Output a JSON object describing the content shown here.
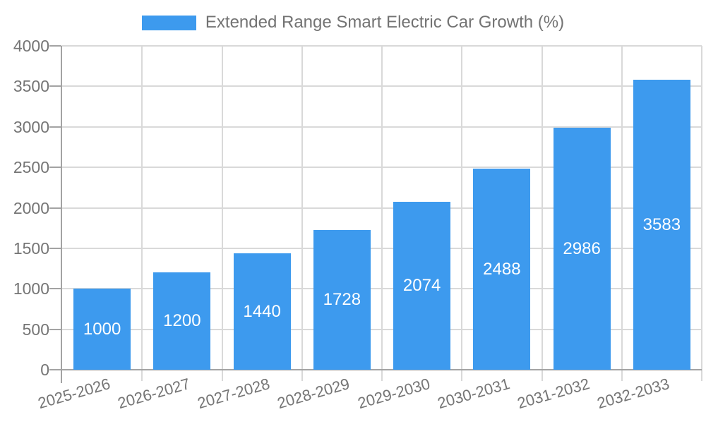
{
  "legend": {
    "label": "Extended Range Smart Electric Car Growth (%)"
  },
  "chart_data": {
    "type": "bar",
    "title": "",
    "xlabel": "",
    "ylabel": "",
    "categories": [
      "2025-2026",
      "2026-2027",
      "2027-2028",
      "2028-2029",
      "2029-2030",
      "2030-2031",
      "2031-2032",
      "2032-2033"
    ],
    "series": [
      {
        "name": "Extended Range Smart Electric Car Growth (%)",
        "values": [
          1000,
          1200,
          1440,
          1728,
          2074,
          2488,
          2986,
          3583
        ]
      }
    ],
    "value_labels": [
      "1000",
      "1200",
      "1440",
      "1728",
      "2074",
      "2488",
      "2986",
      "3583"
    ],
    "value_label_position": "inside-center",
    "ylim": [
      0,
      4000
    ],
    "yticks": [
      0,
      500,
      1000,
      1500,
      2000,
      2500,
      3000,
      3500,
      4000
    ],
    "grid": true,
    "legend_position": "top-center",
    "x_label_rotation_deg": -16
  },
  "colors": {
    "bar": "#3d9aee",
    "axis": "#a3a3a3",
    "grid": "#d9d9d9",
    "tick_text": "#757575",
    "legend_text": "#737373",
    "value_text": "#ffffff",
    "background": "#ffffff"
  }
}
